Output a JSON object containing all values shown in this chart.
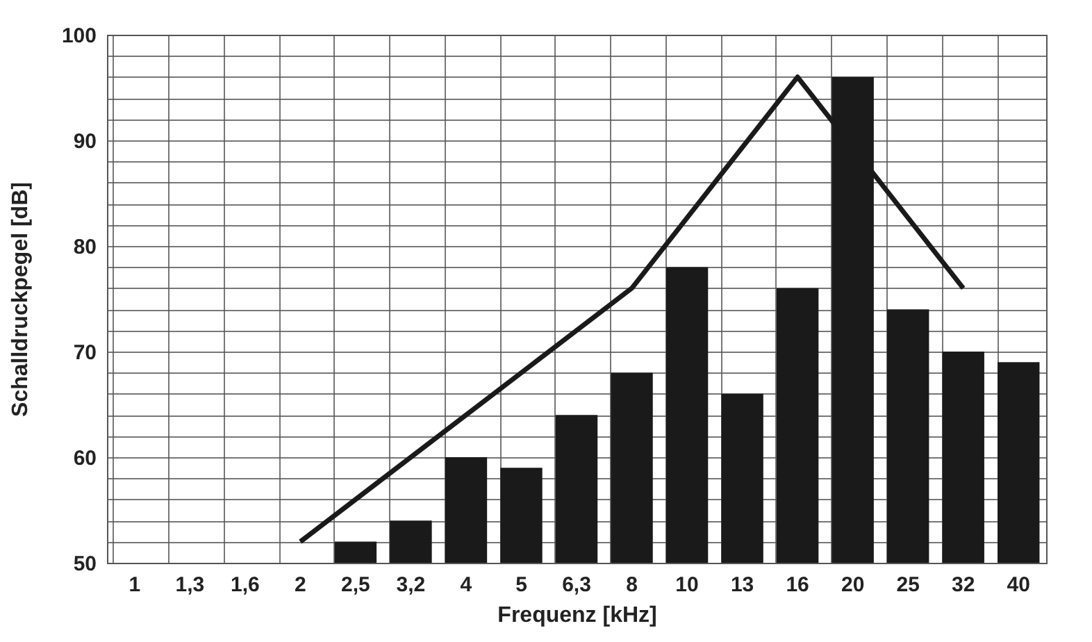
{
  "chart_data": {
    "type": "bar",
    "xlabel": "Frequenz [kHz]",
    "ylabel": "Schalldruckpegel [dB]",
    "categories": [
      "1",
      "1,3",
      "1,6",
      "2",
      "2,5",
      "3,2",
      "4",
      "5",
      "6,3",
      "8",
      "10",
      "13",
      "16",
      "20",
      "25",
      "32",
      "40"
    ],
    "series": [
      {
        "color": "#1a1a1a",
        "values": [
          null,
          null,
          null,
          null,
          52,
          54,
          60,
          59,
          64,
          68,
          78,
          66,
          76,
          96,
          74,
          70,
          69
        ]
      },
      {
        "type": "line",
        "color": "#1a1a1a",
        "values": [
          null,
          null,
          null,
          52,
          null,
          null,
          null,
          null,
          null,
          76,
          null,
          null,
          96,
          null,
          null,
          76,
          null
        ]
      }
    ],
    "ylim": [
      50,
      100
    ],
    "yticks": [
      50,
      {
        "value": 52,
        "label": null
      },
      {
        "value": 54,
        "label": null
      },
      {
        "value": 56,
        "label": null
      },
      {
        "value": 58,
        "label": null
      },
      60,
      {
        "value": 62,
        "label": null
      },
      {
        "value": 64,
        "label": null
      },
      {
        "value": 66,
        "label": null
      },
      {
        "value": 68,
        "label": null
      },
      70,
      {
        "value": 72,
        "label": null
      },
      {
        "value": 74,
        "label": null
      },
      {
        "value": 76,
        "label": null
      },
      {
        "value": 78,
        "label": null
      },
      80,
      {
        "value": 82,
        "label": null
      },
      {
        "value": 84,
        "label": null
      },
      {
        "value": 86,
        "label": null
      },
      {
        "value": 88,
        "label": null
      },
      90,
      {
        "value": 92,
        "label": null
      },
      {
        "value": 94,
        "label": null
      },
      {
        "value": 96,
        "label": null
      },
      {
        "value": 98,
        "label": null
      },
      100
    ],
    "grid": true,
    "marker": "none",
    "line_style": "solid"
  }
}
